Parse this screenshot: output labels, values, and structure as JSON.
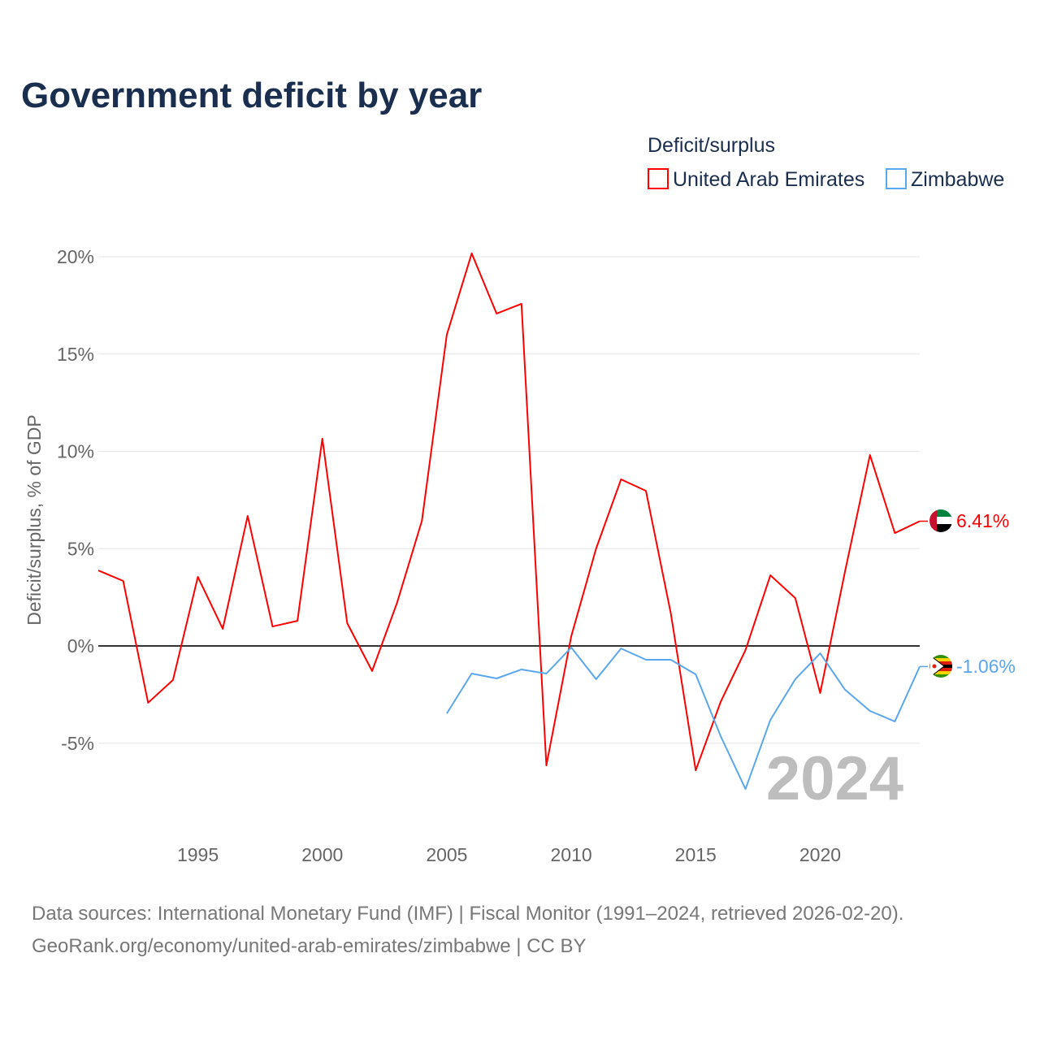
{
  "title": "Government deficit by year",
  "legend_title": "Deficit/surplus",
  "source_line1": "Data sources: International Monetary Fund (IMF) | Fiscal Monitor (1991–2024, retrieved 2026-02-20).",
  "source_line2": "GeoRank.org/economy/united-arab-emirates/zimbabwe | CC BY",
  "year_label": "2024",
  "chart_data": {
    "type": "line",
    "title": "Government deficit by year",
    "xlabel": "",
    "ylabel": "Deficit/surplus, % of GDP",
    "xlim": [
      1991,
      2024
    ],
    "ylim": [
      -9,
      21
    ],
    "x_ticks": [
      1995,
      2000,
      2005,
      2010,
      2015,
      2020
    ],
    "y_ticks": [
      -5,
      0,
      5,
      10,
      15,
      20
    ],
    "y_tick_labels": [
      "-5%",
      "0%",
      "5%",
      "10%",
      "15%",
      "20%"
    ],
    "grid": true,
    "legend_placement": "top-right",
    "series": [
      {
        "name": "United Arab Emirates",
        "color": "#ff0000",
        "end_label": "6.41%",
        "x": [
          1991,
          1992,
          1993,
          1994,
          1995,
          1996,
          1997,
          1998,
          1999,
          2000,
          2001,
          2002,
          2003,
          2004,
          2005,
          2006,
          2007,
          2008,
          2009,
          2010,
          2011,
          2012,
          2013,
          2014,
          2015,
          2016,
          2017,
          2018,
          2019,
          2020,
          2021,
          2022,
          2023,
          2024
        ],
        "values": [
          3.88,
          3.34,
          -2.92,
          -1.75,
          3.55,
          0.88,
          6.68,
          1.0,
          1.29,
          10.65,
          1.17,
          -1.29,
          2.21,
          6.43,
          15.99,
          20.17,
          17.08,
          17.58,
          -6.14,
          0.5,
          5.01,
          8.56,
          7.97,
          1.67,
          -6.39,
          -2.88,
          -0.21,
          3.63,
          2.46,
          -2.42,
          3.84,
          9.81,
          5.8,
          6.41
        ]
      },
      {
        "name": "Zimbabwe",
        "color": "#5aa7ee",
        "end_label": "-1.06%",
        "x": [
          2005,
          2006,
          2007,
          2008,
          2009,
          2010,
          2011,
          2012,
          2013,
          2014,
          2015,
          2016,
          2017,
          2018,
          2019,
          2020,
          2021,
          2022,
          2023,
          2024
        ],
        "values": [
          -3.47,
          -1.42,
          -1.67,
          -1.21,
          -1.42,
          -0.08,
          -1.71,
          -0.13,
          -0.71,
          -0.71,
          -1.46,
          -4.63,
          -7.35,
          -3.8,
          -1.71,
          -0.38,
          -2.25,
          -3.34,
          -3.88,
          -1.06
        ]
      }
    ]
  }
}
